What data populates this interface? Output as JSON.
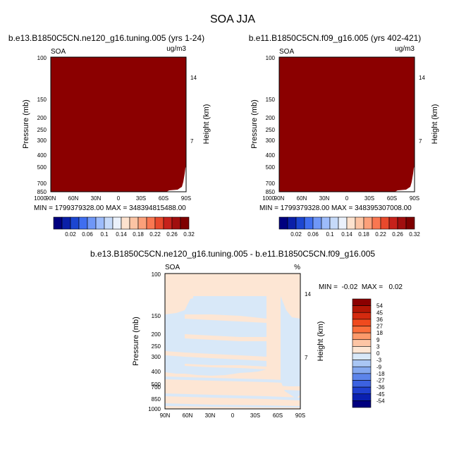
{
  "title": "SOA JJA",
  "colors": {
    "saturated": "#8b0000",
    "diff_pos": "#fde6d4",
    "diff_neg": "#d8e8f8"
  },
  "panels": [
    {
      "case": "b.e13.B1850C5CN.ne120_g16.tuning.005 (yrs 1-24)",
      "var": "SOA",
      "units": "ug/m3",
      "ylabel": "Pressure (mb)",
      "rlabel": "Height (km)",
      "minmax": "MIN = 1799379328.00   MAX = 348394815488.00"
    },
    {
      "case": "b.e11.B1850C5CN.f09_g16.005 (yrs 402-421)",
      "var": "SOA",
      "units": "ug/m3",
      "ylabel": "Pressure (mb)",
      "rlabel": "Height (km)",
      "minmax": "MIN = 1799379328.00   MAX = 348395307008.00"
    }
  ],
  "diff": {
    "title": "b.e13.B1850C5CN.ne120_g16.tuning.005 - b.e11.B1850C5CN.f09_g16.005",
    "var": "SOA",
    "units": "%",
    "ylabel": "Pressure (mb)",
    "rlabel": "Height (km)",
    "minmax": "MIN =  -0.02  MAX =   0.02"
  },
  "chart_data": [
    {
      "type": "heatmap",
      "title": "b.e13.B1850C5CN.ne120_g16.tuning.005 (yrs 1-24)",
      "xlabel": "",
      "ylabel": "Pressure (mb)",
      "y2label": "Height (km)",
      "x_ticks": [
        "90N",
        "60N",
        "30N",
        "0",
        "30S",
        "60S",
        "90S"
      ],
      "y_ticks": [
        "100",
        "150",
        "200",
        "250",
        "300",
        "400",
        "500",
        "700",
        "850",
        "1000"
      ],
      "y2_ticks": [
        "14",
        "7"
      ],
      "ylim": [
        1000,
        100
      ],
      "y_scale": "log",
      "colorbar_levels": [
        "0.02",
        "0.06",
        "0.1",
        "0.14",
        "0.18",
        "0.22",
        "0.26",
        "0.32"
      ],
      "colorbar_colors": [
        "#00007f",
        "#0a1fa8",
        "#1c46d1",
        "#3f6ef0",
        "#6f97f7",
        "#9dbcfb",
        "#c6daf9",
        "#ebf1fb",
        "#fde2ce",
        "#fcc4a4",
        "#fca07a",
        "#f97751",
        "#e8492c",
        "#c6211b",
        "#a10e0e",
        "#7f0000"
      ],
      "field_value": "all values above 0.32 (saturated)"
    },
    {
      "type": "heatmap",
      "title": "b.e11.B1850C5CN.f09_g16.005 (yrs 402-421)",
      "ylabel": "Pressure (mb)",
      "y2label": "Height (km)",
      "x_ticks": [
        "90N",
        "60N",
        "30N",
        "0",
        "30S",
        "60S",
        "90S"
      ],
      "y_ticks": [
        "100",
        "150",
        "200",
        "250",
        "300",
        "400",
        "500",
        "700",
        "850",
        "1000"
      ],
      "y2_ticks": [
        "14",
        "7"
      ],
      "ylim": [
        1000,
        100
      ],
      "y_scale": "log",
      "colorbar_levels": [
        "0.02",
        "0.06",
        "0.1",
        "0.14",
        "0.18",
        "0.22",
        "0.26",
        "0.32"
      ],
      "colorbar_colors": [
        "#00007f",
        "#0a1fa8",
        "#1c46d1",
        "#3f6ef0",
        "#6f97f7",
        "#9dbcfb",
        "#c6daf9",
        "#ebf1fb",
        "#fde2ce",
        "#fcc4a4",
        "#fca07a",
        "#f97751",
        "#e8492c",
        "#c6211b",
        "#a10e0e",
        "#7f0000"
      ],
      "field_value": "all values above 0.32 (saturated)"
    },
    {
      "type": "heatmap",
      "title": "b.e13.B1850C5CN.ne120_g16.tuning.005 - b.e11.B1850C5CN.f09_g16.005",
      "ylabel": "Pressure (mb)",
      "y2label": "Height (km)",
      "x_ticks": [
        "90N",
        "60N",
        "30N",
        "0",
        "30S",
        "60S",
        "90S"
      ],
      "y_ticks": [
        "100",
        "150",
        "200",
        "250",
        "300",
        "400",
        "500",
        "700",
        "850",
        "1000"
      ],
      "y2_ticks": [
        "14",
        "7"
      ],
      "ylim": [
        1000,
        100
      ],
      "y_scale": "log",
      "colorbar_levels": [
        "54",
        "45",
        "36",
        "27",
        "18",
        "9",
        "3",
        "0",
        "-3",
        "-9",
        "-18",
        "-27",
        "-36",
        "-45",
        "-54"
      ],
      "colorbar_colors": [
        "#8b0000",
        "#b31605",
        "#d42a0f",
        "#f04a1e",
        "#fb6f3c",
        "#fc9a6b",
        "#fdc5a5",
        "#fde6d4",
        "#d8e8f8",
        "#a9c6f4",
        "#84a8ef",
        "#5c84ea",
        "#3c62e0",
        "#2040cf",
        "#0a20b0",
        "#00007f"
      ],
      "field_value": "values between -3 and 3 (near zero)"
    }
  ]
}
